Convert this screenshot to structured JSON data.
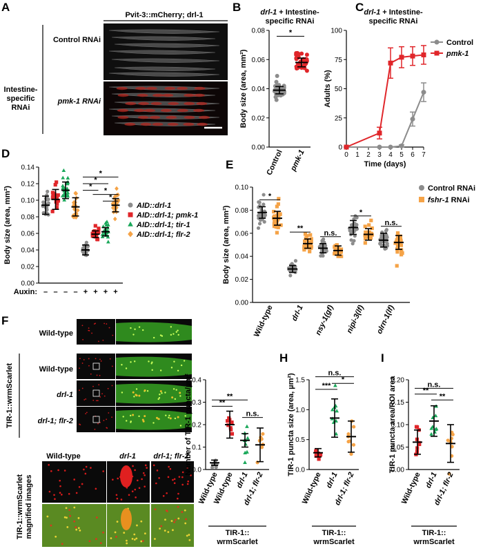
{
  "panel_letters": [
    "A",
    "B",
    "C",
    "D",
    "E",
    "F",
    "G",
    "H",
    "I"
  ],
  "panelA": {
    "header": "Pvit-3::mCherry; drl-1",
    "left_label": "Intestine-specific RNAi",
    "rows": [
      "Control RNAi",
      "pmk-1 RNAi"
    ]
  },
  "panelF": {
    "row_labels": [
      "Wild-type",
      "Wild-type",
      "drl-1",
      "drl-1; flr-2"
    ],
    "group_label": "TIR-1::wrmScarlet",
    "mag_label": "TIR-1::wrmScarlet magnified images",
    "mag_cols": [
      "Wild-type",
      "drl-1",
      "drl-1; flr-2"
    ]
  },
  "colors": {
    "gray": "#8c8c8c",
    "red": "#e0262a",
    "green": "#1aa85a",
    "orange": "#f5a347",
    "black": "#000000"
  },
  "chart_data": [
    {
      "id": "B",
      "type": "scatter",
      "title": "drl-1 + Intestine-specific RNAi",
      "ylabel": "Body size (area, mm²)",
      "ylim": [
        0,
        0.08
      ],
      "yticks": [
        0,
        0.02,
        0.04,
        0.06,
        0.08
      ],
      "yticklabels": [
        "0.00",
        "0.02",
        "0.04",
        "0.06",
        "0.08"
      ],
      "categories": [
        "Control",
        "pmk-1"
      ],
      "groups": [
        {
          "name": "Control",
          "color": "gray",
          "n": 40,
          "mean": 0.039,
          "sd": 0.0025,
          "err": 0.0025
        },
        {
          "name": "pmk-1",
          "color": "red",
          "n": 45,
          "mean": 0.058,
          "sd": 0.0035,
          "err": 0.003
        }
      ],
      "sig": [
        {
          "from": 0,
          "to": 1,
          "label": "*"
        }
      ]
    },
    {
      "id": "C",
      "type": "line",
      "title": "drl-1 + Intestine-specific RNAi",
      "xlabel": "Time (days)",
      "ylabel": "Adults (%)",
      "xlim": [
        0,
        7
      ],
      "ylim": [
        0,
        100
      ],
      "xticks": [
        0,
        1,
        2,
        3,
        4,
        5,
        6,
        7
      ],
      "yticks": [
        0,
        25,
        50,
        75,
        100
      ],
      "series": [
        {
          "name": "Control",
          "color": "gray",
          "x": [
            0,
            3,
            4,
            5,
            6,
            7
          ],
          "y": [
            0,
            0,
            0,
            1,
            24,
            47
          ],
          "err": [
            0,
            0,
            0,
            1,
            6,
            8
          ]
        },
        {
          "name": "pmk-1",
          "color": "red",
          "x": [
            0,
            3,
            4,
            5,
            6,
            7
          ],
          "y": [
            0,
            12,
            72,
            77,
            78,
            79
          ],
          "err": [
            0,
            5,
            13,
            9,
            8,
            8
          ]
        }
      ],
      "legend": "top-right"
    },
    {
      "id": "D",
      "type": "scatter",
      "ylabel": "Body size (area, mm²)",
      "ylim": [
        0,
        0.14
      ],
      "yticks": [
        0,
        0.02,
        0.04,
        0.06,
        0.08,
        0.1,
        0.12,
        0.14
      ],
      "yticklabels": [
        "0.00",
        "0.02",
        "0.04",
        "0.06",
        "0.08",
        "0.10",
        "0.12",
        "0.14"
      ],
      "auxin_label": "Auxin:",
      "auxin": [
        "–",
        "–",
        "–",
        "–",
        "+",
        "+",
        "+",
        "+"
      ],
      "legend_entries": [
        {
          "name": "AID::drl-1",
          "color": "gray",
          "marker": "circle"
        },
        {
          "name": "AID::drl-1; pmk-1",
          "color": "red",
          "marker": "square"
        },
        {
          "name": "AID::drl-1; tir-1",
          "color": "green",
          "marker": "triangle"
        },
        {
          "name": "AID::drl-1; flr-2",
          "color": "orange",
          "marker": "diamond"
        }
      ],
      "groups": [
        {
          "color": "gray",
          "marker": "circle",
          "n": 24,
          "mean": 0.094,
          "sd": 0.009,
          "err": 0.011
        },
        {
          "color": "red",
          "marker": "square",
          "n": 24,
          "mean": 0.101,
          "sd": 0.01,
          "err": 0.012
        },
        {
          "color": "green",
          "marker": "triangle",
          "n": 24,
          "mean": 0.112,
          "sd": 0.008,
          "err": 0.01
        },
        {
          "color": "orange",
          "marker": "diamond",
          "n": 22,
          "mean": 0.092,
          "sd": 0.009,
          "err": 0.011
        },
        {
          "color": "gray",
          "marker": "circle",
          "n": 24,
          "mean": 0.04,
          "sd": 0.005,
          "err": 0.006
        },
        {
          "color": "red",
          "marker": "square",
          "n": 24,
          "mean": 0.059,
          "sd": 0.004,
          "err": 0.004
        },
        {
          "color": "green",
          "marker": "triangle",
          "n": 24,
          "mean": 0.062,
          "sd": 0.005,
          "err": 0.005
        },
        {
          "color": "orange",
          "marker": "diamond",
          "n": 20,
          "mean": 0.094,
          "sd": 0.007,
          "err": 0.008
        }
      ],
      "sig": [
        {
          "from": 4,
          "to": 5,
          "label": "*",
          "y": 0.112
        },
        {
          "from": 4,
          "to": 6,
          "label": "*",
          "y": 0.12
        },
        {
          "from": 4,
          "to": 7,
          "label": "*",
          "y": 0.128
        },
        {
          "from": 5,
          "to": 7,
          "label": "*",
          "y": 0.107
        },
        {
          "from": 6,
          "to": 7,
          "label": "*",
          "y": 0.099
        }
      ]
    },
    {
      "id": "E",
      "type": "scatter",
      "ylabel": "Body size (area, mm²)",
      "ylim": [
        0,
        0.1
      ],
      "yticks": [
        0,
        0.02,
        0.04,
        0.06,
        0.08,
        0.1
      ],
      "yticklabels": [
        "0.00",
        "0.02",
        "0.04",
        "0.06",
        "0.08",
        "0.10"
      ],
      "categories": [
        "Wild-type",
        "drl-1",
        "nsy-1(gf)",
        "nipi-3(lf)",
        "olrn-1(lf)"
      ],
      "legend_entries": [
        {
          "name": "Control RNAi",
          "color": "gray",
          "marker": "circle"
        },
        {
          "name": "fshr-1 RNAi",
          "color": "orange",
          "marker": "square"
        }
      ],
      "groups": [
        {
          "color": "gray",
          "marker": "circle",
          "n": 30,
          "mean": 0.078,
          "sd": 0.005,
          "err": 0.005
        },
        {
          "color": "orange",
          "marker": "square",
          "n": 26,
          "mean": 0.073,
          "sd": 0.006,
          "err": 0.006
        },
        {
          "color": "gray",
          "marker": "circle",
          "n": 28,
          "mean": 0.029,
          "sd": 0.0025,
          "err": 0.003
        },
        {
          "color": "orange",
          "marker": "square",
          "n": 24,
          "mean": 0.051,
          "sd": 0.004,
          "err": 0.004
        },
        {
          "color": "gray",
          "marker": "circle",
          "n": 28,
          "mean": 0.047,
          "sd": 0.004,
          "err": 0.004
        },
        {
          "color": "orange",
          "marker": "square",
          "n": 22,
          "mean": 0.045,
          "sd": 0.004,
          "err": 0.004
        },
        {
          "color": "gray",
          "marker": "circle",
          "n": 28,
          "mean": 0.065,
          "sd": 0.005,
          "err": 0.006
        },
        {
          "color": "orange",
          "marker": "square",
          "n": 24,
          "mean": 0.059,
          "sd": 0.004,
          "err": 0.005
        },
        {
          "color": "gray",
          "marker": "circle",
          "n": 36,
          "mean": 0.054,
          "sd": 0.005,
          "err": 0.006
        },
        {
          "color": "orange",
          "marker": "square",
          "n": 28,
          "mean": 0.052,
          "sd": 0.005,
          "err": 0.006
        }
      ],
      "sig": [
        {
          "from": 0,
          "to": 1,
          "label": "*",
          "y": 0.089
        },
        {
          "from": 2,
          "to": 3,
          "label": "**",
          "y": 0.061
        },
        {
          "from": 4,
          "to": 5,
          "label": "n.s.",
          "y": 0.057
        },
        {
          "from": 6,
          "to": 7,
          "label": "*",
          "y": 0.075
        },
        {
          "from": 8,
          "to": 9,
          "label": "n.s.",
          "y": 0.066
        }
      ]
    },
    {
      "id": "G",
      "type": "scatter",
      "ylabel": "Number of TIR-1 puncta/µm²",
      "ylim": [
        0,
        0.4
      ],
      "yticks": [
        0,
        0.1,
        0.2,
        0.3,
        0.4
      ],
      "yticklabels": [
        "0.0",
        "0.1",
        "0.2",
        "0.3",
        "0.4"
      ],
      "categories": [
        "Wild-type",
        "Wild-type",
        "drl-1",
        "drl-1; flr-2"
      ],
      "xgroup_label": "TIR-1:: wrmScarlet",
      "groups": [
        {
          "color": "gray",
          "marker": "circle",
          "n": 8,
          "mean": 0.03,
          "sd": 0.012,
          "err": 0.012
        },
        {
          "color": "red",
          "marker": "square",
          "n": 8,
          "mean": 0.2,
          "sd": 0.05,
          "err": 0.06
        },
        {
          "color": "green",
          "marker": "triangle",
          "n": 9,
          "mean": 0.13,
          "sd": 0.03,
          "err": 0.03
        },
        {
          "color": "orange",
          "marker": "circle",
          "n": 8,
          "mean": 0.11,
          "sd": 0.06,
          "err": 0.075
        }
      ],
      "sig": [
        {
          "from": 0,
          "to": 1,
          "label": "**",
          "y": 0.282
        },
        {
          "from": 0,
          "to": 2,
          "label": "**",
          "y": 0.31
        },
        {
          "from": 2,
          "to": 3,
          "label": "n.s.",
          "y": 0.232
        }
      ]
    },
    {
      "id": "H",
      "type": "scatter",
      "ylabel": "TIR-1 puncta size (area, µm²)",
      "ylim": [
        0,
        1.5
      ],
      "yticks": [
        0,
        0.5,
        1,
        1.5
      ],
      "yticklabels": [
        "0.0",
        "0.5",
        "1.0",
        "1.5"
      ],
      "categories": [
        "Wild-type",
        "drl-1",
        "drl-1; flr-2"
      ],
      "xgroup_label": "TIR-1:: wrmScarlet",
      "groups": [
        {
          "color": "red",
          "marker": "square",
          "n": 8,
          "mean": 0.28,
          "sd": 0.05,
          "err": 0.07
        },
        {
          "color": "green",
          "marker": "triangle",
          "n": 9,
          "mean": 0.86,
          "sd": 0.27,
          "err": 0.32
        },
        {
          "color": "orange",
          "marker": "circle",
          "n": 8,
          "mean": 0.55,
          "sd": 0.22,
          "err": 0.26
        }
      ],
      "sig": [
        {
          "from": 0,
          "to": 1,
          "label": "***",
          "y": 1.34
        },
        {
          "from": 1,
          "to": 2,
          "label": "*",
          "y": 1.44
        },
        {
          "from": 0,
          "to": 2,
          "label": "n.s.",
          "y": 1.55
        }
      ]
    },
    {
      "id": "I",
      "type": "scatter",
      "ylabel": "TIR-1 puncta area/ROI area",
      "ylim": [
        0,
        0.2
      ],
      "yticks": [
        0,
        0.05,
        0.1,
        0.15,
        0.2
      ],
      "yticklabels": [
        "0.00",
        "0.05",
        "0.10",
        "0.15",
        "0.20"
      ],
      "categories": [
        "Wild-type",
        "drl-1",
        "drl-1; flr-2"
      ],
      "xgroup_label": "TIR-1:: wrmScarlet",
      "groups": [
        {
          "color": "red",
          "marker": "square",
          "n": 9,
          "mean": 0.061,
          "sd": 0.02,
          "err": 0.027
        },
        {
          "color": "green",
          "marker": "triangle",
          "n": 9,
          "mean": 0.108,
          "sd": 0.03,
          "err": 0.034
        },
        {
          "color": "orange",
          "marker": "circle",
          "n": 9,
          "mean": 0.058,
          "sd": 0.035,
          "err": 0.042
        }
      ],
      "sig": [
        {
          "from": 0,
          "to": 1,
          "label": "**",
          "y": 0.168
        },
        {
          "from": 1,
          "to": 2,
          "label": "**",
          "y": 0.155
        },
        {
          "from": 0,
          "to": 2,
          "label": "n.s.",
          "y": 0.181
        }
      ]
    }
  ]
}
